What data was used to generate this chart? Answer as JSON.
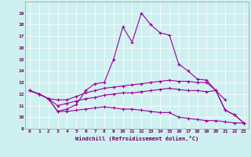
{
  "xlabel": "Windchill (Refroidissement éolien,°C)",
  "bg_color": "#cff0f0",
  "line_color": "#990099",
  "x_data": [
    0,
    1,
    2,
    3,
    4,
    5,
    6,
    7,
    8,
    9,
    10,
    11,
    12,
    13,
    14,
    15,
    16,
    17,
    18,
    19,
    20,
    21,
    22,
    23
  ],
  "line1": [
    12.3,
    12.0,
    11.6,
    10.5,
    10.7,
    11.1,
    12.3,
    12.9,
    13.0,
    15.0,
    17.8,
    16.5,
    19.0,
    18.0,
    17.3,
    17.1,
    14.6,
    14.0,
    13.3,
    13.2,
    12.3,
    10.6,
    10.2,
    9.5
  ],
  "line2": [
    12.3,
    12.0,
    11.6,
    11.5,
    11.5,
    11.8,
    12.1,
    12.3,
    12.5,
    12.6,
    12.7,
    12.8,
    12.9,
    13.0,
    13.1,
    13.2,
    13.1,
    13.1,
    13.0,
    13.0,
    12.3,
    11.5,
    null,
    null
  ],
  "line3": [
    12.3,
    12.0,
    11.6,
    11.0,
    11.2,
    11.4,
    11.6,
    11.7,
    11.9,
    12.0,
    12.1,
    12.1,
    12.2,
    12.3,
    12.4,
    12.5,
    12.4,
    12.3,
    12.3,
    12.2,
    12.3,
    10.6,
    10.2,
    9.5
  ],
  "line4": [
    12.3,
    12.0,
    11.6,
    10.5,
    10.5,
    10.6,
    10.7,
    10.8,
    10.9,
    10.8,
    10.7,
    10.7,
    10.6,
    10.5,
    10.4,
    10.4,
    10.0,
    9.9,
    9.8,
    9.7,
    9.7,
    9.6,
    9.5,
    9.5
  ],
  "ylim": [
    9,
    20
  ],
  "xlim": [
    -0.5,
    23.5
  ],
  "yticks": [
    9,
    10,
    11,
    12,
    13,
    14,
    15,
    16,
    17,
    18,
    19
  ],
  "xticks": [
    0,
    1,
    2,
    3,
    4,
    5,
    6,
    7,
    8,
    9,
    10,
    11,
    12,
    13,
    14,
    15,
    16,
    17,
    18,
    19,
    20,
    21,
    22,
    23
  ]
}
